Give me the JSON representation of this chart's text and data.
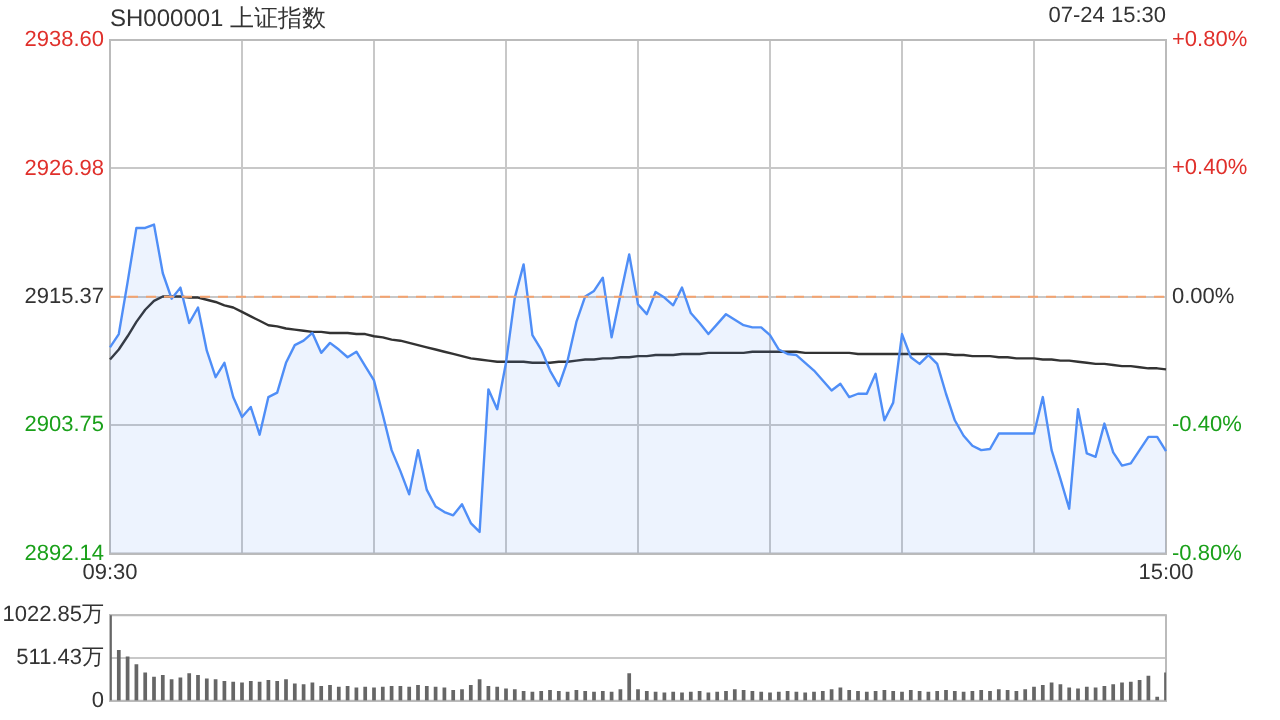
{
  "chart_data": [
    {
      "type": "area",
      "title": "SH000001 上证指数",
      "subtitle": "07-24 15:30",
      "categories": [
        "09:30",
        null,
        null,
        null,
        null,
        null,
        null,
        null,
        null,
        null,
        null,
        null,
        null,
        null,
        null,
        null,
        null,
        null,
        null,
        null,
        null,
        null,
        null,
        null,
        null,
        null,
        null,
        null,
        null,
        null,
        null,
        null,
        null,
        null,
        null,
        null,
        null,
        null,
        null,
        null,
        null,
        null,
        null,
        null,
        null,
        null,
        null,
        null,
        null,
        null,
        null,
        null,
        null,
        null,
        null,
        null,
        null,
        null,
        null,
        null,
        null,
        null,
        null,
        null,
        null,
        null,
        null,
        null,
        null,
        null,
        null,
        null,
        null,
        null,
        null,
        null,
        null,
        null,
        null,
        null,
        null,
        null,
        null,
        null,
        null,
        null,
        null,
        null,
        null,
        null,
        null,
        null,
        null,
        null,
        null,
        null,
        null,
        null,
        null,
        null,
        null,
        null,
        null,
        null,
        null,
        null,
        null,
        null,
        null,
        null,
        null,
        null,
        null,
        null,
        null,
        null,
        null,
        null,
        null,
        null,
        "15:00"
      ],
      "ylim": [
        2892.14,
        2938.6
      ],
      "yticks": [
        2892.14,
        2903.75,
        2915.37,
        2926.98,
        {
          "value": 2938.6,
          "label": "2938.60"
        }
      ],
      "y2lim": [
        -0.8,
        0.8
      ],
      "y2ticks": [
        {
          "value": -0.8,
          "label": "-0.80%"
        },
        {
          "value": -0.4,
          "label": "-0.40%"
        },
        {
          "value": 0,
          "label": "0.00%"
        },
        {
          "value": 0.4,
          "label": "+0.40%"
        },
        {
          "value": 0.8,
          "label": "+0.80%"
        }
      ],
      "grid": true,
      "marker": "none",
      "ref_lines": [
        {
          "axis": "y",
          "value": 2915.37,
          "color": "#f4a36f",
          "line_style": "dashed"
        }
      ],
      "series": [
        {
          "type": "area",
          "color": "#4f8ef7",
          "values": [
            2910.8,
            2912.0,
            2916.7,
            2921.6,
            2921.6,
            2921.9,
            2917.5,
            2915.2,
            2916.2,
            2913.0,
            2914.4,
            2910.5,
            2908.1,
            2909.4,
            2906.3,
            2904.5,
            2905.4,
            2902.9,
            2906.3,
            2906.7,
            2909.4,
            2911.0,
            2911.4,
            2912.1,
            2910.3,
            2911.2,
            2910.6,
            2909.9,
            2910.4,
            2909.1,
            2907.8,
            2904.7,
            2901.5,
            2899.6,
            2897.5,
            2901.5,
            2897.9,
            2896.4,
            2895.9,
            2895.6,
            2896.6,
            2894.9,
            2894.1,
            2907.0,
            2905.2,
            2909.4,
            2915.3,
            2918.3,
            2911.9,
            2910.6,
            2908.7,
            2907.3,
            2909.6,
            2913.1,
            2915.4,
            2915.9,
            2917.1,
            2911.7,
            2915.5,
            2919.2,
            2914.7,
            2913.8,
            2915.8,
            2915.3,
            2914.6,
            2916.2,
            2913.9,
            2913.0,
            2912.0,
            2912.9,
            2913.8,
            2913.3,
            2912.8,
            2912.6,
            2912.6,
            2911.9,
            2910.6,
            2910.2,
            2910.1,
            2909.4,
            2908.7,
            2907.8,
            2906.9,
            2907.5,
            2906.3,
            2906.6,
            2906.6,
            2908.4,
            2904.2,
            2905.8,
            2912.0,
            2909.9,
            2909.3,
            2910.1,
            2909.3,
            2906.6,
            2904.2,
            2902.8,
            2901.9,
            2901.5,
            2901.6,
            2903.0,
            2903.0,
            2903.0,
            2903.0,
            2903.0,
            2906.3,
            2901.5,
            2898.9,
            2896.2,
            2905.2,
            2901.2,
            2900.9,
            2903.9,
            2901.3,
            2900.1,
            2900.3,
            2901.5,
            2902.7,
            2902.7,
            2901.4
          ]
        },
        {
          "type": "line",
          "color": "#333333",
          "values": [
            2909.7,
            2910.6,
            2911.8,
            2913.1,
            2914.2,
            2915.0,
            2915.4,
            2915.4,
            2915.4,
            2915.3,
            2915.3,
            2915.1,
            2914.9,
            2914.6,
            2914.4,
            2914.0,
            2913.6,
            2913.2,
            2912.8,
            2912.7,
            2912.5,
            2912.4,
            2912.3,
            2912.2,
            2912.2,
            2912.1,
            2912.1,
            2912.1,
            2912.0,
            2912.0,
            2911.8,
            2911.7,
            2911.5,
            2911.4,
            2911.2,
            2911.0,
            2910.8,
            2910.6,
            2910.4,
            2910.2,
            2910.0,
            2909.8,
            2909.7,
            2909.6,
            2909.5,
            2909.5,
            2909.5,
            2909.5,
            2909.4,
            2909.4,
            2909.4,
            2909.5,
            2909.5,
            2909.6,
            2909.7,
            2909.7,
            2909.8,
            2909.8,
            2909.9,
            2909.9,
            2910.0,
            2910.0,
            2910.1,
            2910.1,
            2910.1,
            2910.2,
            2910.2,
            2910.2,
            2910.3,
            2910.3,
            2910.3,
            2910.3,
            2910.3,
            2910.4,
            2910.4,
            2910.4,
            2910.4,
            2910.4,
            2910.4,
            2910.3,
            2910.3,
            2910.3,
            2910.3,
            2910.3,
            2910.3,
            2910.2,
            2910.2,
            2910.2,
            2910.2,
            2910.2,
            2910.2,
            2910.2,
            2910.2,
            2910.2,
            2910.2,
            2910.2,
            2910.1,
            2910.1,
            2910.0,
            2910.0,
            2910.0,
            2909.9,
            2909.9,
            2909.8,
            2909.8,
            2909.8,
            2909.7,
            2909.7,
            2909.6,
            2909.6,
            2909.5,
            2909.4,
            2909.3,
            2909.3,
            2909.2,
            2909.1,
            2909.1,
            2909.0,
            2908.9,
            2908.9,
            2908.8
          ]
        }
      ]
    },
    {
      "type": "bar",
      "tick_labels": "y",
      "grid": "y",
      "categories": [
        null,
        null,
        null,
        null,
        null,
        null,
        null,
        null,
        null,
        null,
        null,
        null,
        null,
        null,
        null,
        null,
        null,
        null,
        null,
        null,
        null,
        null,
        null,
        null,
        null,
        null,
        null,
        null,
        null,
        null,
        null,
        null,
        null,
        null,
        null,
        null,
        null,
        null,
        null,
        null,
        null,
        null,
        null,
        null,
        null,
        null,
        null,
        null,
        null,
        null,
        null,
        null,
        null,
        null,
        null,
        null,
        null,
        null,
        null,
        null,
        null,
        null,
        null,
        null,
        null,
        null,
        null,
        null,
        null,
        null,
        null,
        null,
        null,
        null,
        null,
        null,
        null,
        null,
        null,
        null,
        null,
        null,
        null,
        null,
        null,
        null,
        null,
        null,
        null,
        null,
        null,
        null,
        null,
        null,
        null,
        null,
        null,
        null,
        null,
        null,
        null,
        null,
        null,
        null,
        null,
        null,
        null,
        null,
        null,
        null,
        null,
        null,
        null,
        null,
        null,
        null,
        null,
        null,
        null,
        null,
        null
      ],
      "ylim": [
        0,
        1022.85
      ],
      "yticks": [
        0,
        {
          "value": 511.43,
          "label": "511.43万"
        },
        {
          "value": 1022.85,
          "label": "1022.85万"
        }
      ],
      "values": [
        1020,
        600,
        520,
        430,
        330,
        280,
        300,
        250,
        270,
        320,
        300,
        260,
        250,
        230,
        220,
        210,
        230,
        220,
        240,
        230,
        250,
        200,
        190,
        210,
        170,
        180,
        160,
        170,
        150,
        160,
        150,
        160,
        170,
        170,
        160,
        180,
        170,
        160,
        150,
        120,
        130,
        180,
        250,
        170,
        160,
        140,
        130,
        110,
        100,
        110,
        120,
        110,
        100,
        120,
        110,
        100,
        110,
        100,
        130,
        320,
        130,
        110,
        100,
        90,
        100,
        90,
        100,
        110,
        90,
        100,
        110,
        130,
        120,
        110,
        100,
        90,
        100,
        110,
        100,
        90,
        100,
        110,
        130,
        150,
        120,
        110,
        100,
        110,
        120,
        110,
        100,
        120,
        110,
        100,
        110,
        120,
        110,
        100,
        110,
        120,
        110,
        130,
        120,
        110,
        130,
        160,
        180,
        210,
        190,
        150,
        140,
        160,
        150,
        170,
        190,
        210,
        220,
        240,
        290,
        40,
        330
      ],
      "color": "#666666"
    }
  ]
}
